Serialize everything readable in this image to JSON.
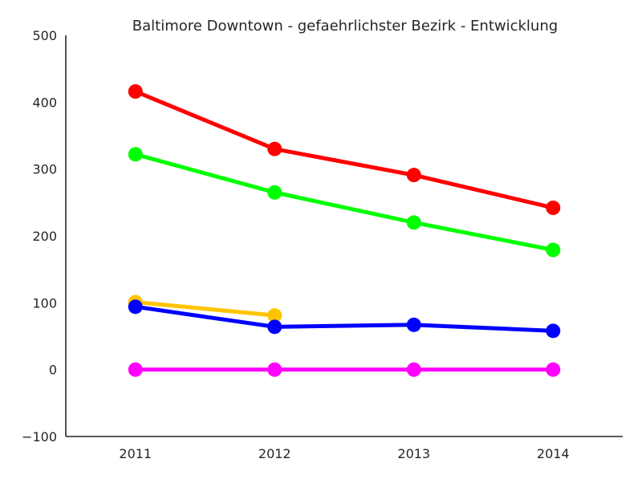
{
  "chart_data": {
    "type": "line",
    "title": "Baltimore Downtown - gefaehrlichster Bezirk - Entwicklung",
    "xlabel": "",
    "ylabel": "",
    "categories": [
      "2011",
      "2012",
      "2013",
      "2014"
    ],
    "ylim": [
      -100,
      500
    ],
    "yticks": [
      -100,
      0,
      100,
      200,
      300,
      400,
      500
    ],
    "ytick_labels": [
      "−100",
      "0",
      "100",
      "200",
      "300",
      "400",
      "500"
    ],
    "grid": false,
    "legend": "none",
    "series": [
      {
        "color": "#ff0000",
        "values": [
          416,
          330,
          291,
          242
        ]
      },
      {
        "color": "#00ff00",
        "values": [
          322,
          265,
          220,
          179
        ]
      },
      {
        "color": "#ffc400",
        "values": [
          101,
          81,
          null,
          null
        ]
      },
      {
        "color": "#0000ff",
        "values": [
          94,
          64,
          67,
          58
        ]
      },
      {
        "color": "#ff00ff",
        "values": [
          0,
          0,
          0,
          0
        ]
      }
    ]
  }
}
